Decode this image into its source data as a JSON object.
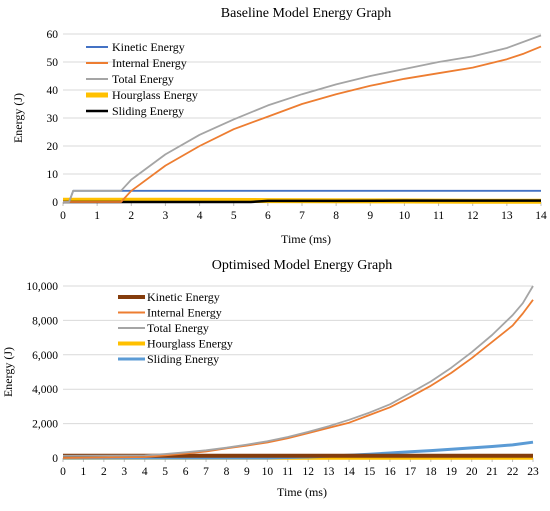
{
  "chart_data": [
    {
      "type": "line",
      "title": "Baseline Model Energy Graph",
      "xlabel": "Time (ms)",
      "ylabel": "Energy (J)",
      "xlim": [
        0,
        14
      ],
      "ylim": [
        0,
        60
      ],
      "x_ticks": [
        0,
        1,
        2,
        3,
        4,
        5,
        6,
        7,
        8,
        9,
        10,
        11,
        12,
        13,
        14
      ],
      "y_ticks": [
        0,
        10,
        20,
        30,
        40,
        50,
        60
      ],
      "y_tick_labels": [
        "0",
        "10",
        "20",
        "30",
        "40",
        "50",
        "60"
      ],
      "grid": "horizontal",
      "legend_position": "top-left",
      "series": [
        {
          "name": "Kinetic Energy",
          "color": "#4472C4",
          "x": [
            0,
            0.18,
            0.3,
            1,
            2,
            4,
            6,
            8,
            10,
            12,
            14
          ],
          "y": [
            0,
            0,
            4,
            4,
            4,
            4,
            4,
            4,
            4,
            4,
            4
          ]
        },
        {
          "name": "Internal Energy",
          "color": "#ED7D31",
          "x": [
            0,
            1.7,
            2,
            3,
            4,
            5,
            6,
            7,
            8,
            9,
            10,
            11,
            12,
            13,
            13.5,
            14
          ],
          "y": [
            0,
            0,
            4,
            13,
            20,
            26,
            30.5,
            35,
            38.5,
            41.5,
            44,
            46,
            48,
            51,
            53,
            55.5
          ]
        },
        {
          "name": "Total Energy",
          "color": "#A5A5A5",
          "x": [
            0,
            0.18,
            0.3,
            1.7,
            2,
            3,
            4,
            5,
            6,
            7,
            8,
            9,
            10,
            11,
            12,
            13,
            14
          ],
          "y": [
            0,
            0,
            4,
            4,
            8,
            17,
            24,
            29.5,
            34.5,
            38.5,
            42,
            45,
            47.5,
            50,
            52,
            55,
            59.5
          ]
        },
        {
          "name": "Hourglass Energy",
          "color": "#FFC000",
          "x": [
            0,
            3,
            6,
            9,
            12,
            14
          ],
          "y": [
            0.6,
            0.6,
            0.5,
            0.4,
            0.3,
            0.3
          ]
        },
        {
          "name": "Sliding Energy",
          "color": "#000000",
          "x": [
            0,
            5.5,
            6,
            8,
            10,
            12,
            14
          ],
          "y": [
            0,
            0,
            0.4,
            0.4,
            0.5,
            0.5,
            0.5
          ]
        }
      ]
    },
    {
      "type": "line",
      "title": "Optimised Model Energy Graph",
      "xlabel": "Time (ms)",
      "ylabel": "Energy (J)",
      "xlim": [
        0,
        23
      ],
      "ylim": [
        0,
        10000
      ],
      "x_ticks": [
        0,
        1,
        2,
        3,
        4,
        5,
        6,
        7,
        8,
        9,
        10,
        11,
        12,
        13,
        14,
        15,
        16,
        17,
        18,
        19,
        20,
        21,
        22,
        23
      ],
      "y_ticks": [
        0,
        2000,
        4000,
        6000,
        8000,
        10000
      ],
      "y_tick_labels": [
        "0",
        "2,000",
        "4,000",
        "6,000",
        "8,000",
        "10,000"
      ],
      "grid": "horizontal",
      "legend_position": "top-left",
      "series": [
        {
          "name": "Kinetic Energy",
          "color": "#843C0C",
          "x": [
            0,
            5,
            10,
            15,
            20,
            23
          ],
          "y": [
            130,
            130,
            130,
            130,
            130,
            130
          ]
        },
        {
          "name": "Internal Energy",
          "color": "#ED7D31",
          "x": [
            0,
            4,
            5,
            6,
            7,
            8,
            9,
            10,
            11,
            12,
            13,
            14,
            15,
            16,
            17,
            18,
            19,
            20,
            21,
            22,
            22.5,
            23
          ],
          "y": [
            0,
            60,
            150,
            260,
            380,
            560,
            720,
            900,
            1150,
            1450,
            1750,
            2050,
            2500,
            2950,
            3550,
            4200,
            4950,
            5800,
            6750,
            7700,
            8400,
            9200
          ]
        },
        {
          "name": "Total Energy",
          "color": "#A5A5A5",
          "x": [
            0,
            4,
            5,
            6,
            7,
            8,
            9,
            10,
            11,
            12,
            13,
            14,
            15,
            16,
            17,
            18,
            19,
            20,
            21,
            22,
            22.5,
            23
          ],
          "y": [
            130,
            150,
            230,
            330,
            450,
            600,
            780,
            970,
            1220,
            1520,
            1850,
            2220,
            2640,
            3120,
            3780,
            4450,
            5250,
            6150,
            7150,
            8300,
            9000,
            10000
          ]
        },
        {
          "name": "Hourglass Energy",
          "color": "#FFC000",
          "x": [
            0,
            5,
            10,
            15,
            20,
            23
          ],
          "y": [
            10,
            10,
            15,
            15,
            20,
            20
          ]
        },
        {
          "name": "Sliding Energy",
          "color": "#5B9BD5",
          "x": [
            0,
            10,
            12,
            13,
            14,
            15,
            16,
            17,
            18,
            19,
            20,
            21,
            22,
            23
          ],
          "y": [
            0,
            0,
            60,
            110,
            160,
            220,
            290,
            360,
            430,
            510,
            590,
            670,
            760,
            920
          ]
        }
      ]
    }
  ]
}
